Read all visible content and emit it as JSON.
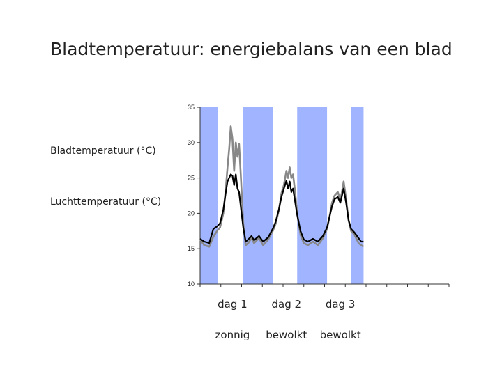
{
  "slide": {
    "title": "Bladtemperatuur: energiebalans van een blad",
    "labels": {
      "leaf": "Bladtemperatuur (°C)",
      "air": "Luchttemperatuur (°C)"
    }
  },
  "colors": {
    "night_band": "#a0b4ff",
    "leaf_series": "#888888",
    "air_series": "#000000",
    "axis": "#333333"
  },
  "chart_data": {
    "type": "line",
    "title": "Bladtemperatuur: energiebalans van een blad",
    "xlabel": "",
    "ylabel": "",
    "ylim": [
      10,
      35
    ],
    "yticks": [
      10,
      15,
      20,
      25,
      30,
      35
    ],
    "ytick_labels": [
      "10",
      "15",
      "20",
      "25",
      "30",
      "35"
    ],
    "xlim": [
      0,
      3
    ],
    "x_unit": "days",
    "night_bands": [
      [
        0,
        0.21
      ],
      [
        0.52,
        0.88
      ],
      [
        1.17,
        1.53
      ],
      [
        1.82,
        1.97
      ]
    ],
    "day_labels": [
      {
        "x": 0.39,
        "day": "dag 1",
        "weather": "zonnig"
      },
      {
        "x": 1.04,
        "day": "dag 2",
        "weather": "bewolkt"
      },
      {
        "x": 1.69,
        "day": "dag 3",
        "weather": "bewolkt"
      }
    ],
    "series": [
      {
        "name": "Bladtemperatuur (°C)",
        "x": [
          0,
          0.05,
          0.11,
          0.16,
          0.21,
          0.24,
          0.28,
          0.31,
          0.33,
          0.35,
          0.37,
          0.39,
          0.41,
          0.43,
          0.45,
          0.47,
          0.49,
          0.52,
          0.55,
          0.58,
          0.62,
          0.65,
          0.71,
          0.76,
          0.82,
          0.88,
          0.91,
          0.95,
          0.98,
          1.01,
          1.04,
          1.06,
          1.08,
          1.1,
          1.12,
          1.14,
          1.17,
          1.21,
          1.25,
          1.3,
          1.36,
          1.42,
          1.48,
          1.53,
          1.56,
          1.59,
          1.62,
          1.66,
          1.69,
          1.71,
          1.73,
          1.76,
          1.79,
          1.82,
          1.86,
          1.91,
          1.94,
          1.97
        ],
        "values": [
          16.3,
          15.5,
          15.3,
          16.7,
          17.6,
          18.0,
          20.0,
          23.5,
          26.5,
          29.0,
          32.3,
          30.5,
          26.0,
          30.0,
          28.0,
          29.8,
          25.5,
          18.5,
          15.5,
          15.8,
          16.5,
          15.8,
          16.5,
          15.5,
          16.3,
          17.6,
          18.5,
          20.5,
          22.8,
          24.0,
          26.0,
          25.0,
          26.5,
          25.0,
          25.5,
          23.5,
          20.0,
          17.0,
          15.8,
          15.5,
          16.0,
          15.5,
          16.5,
          17.8,
          19.5,
          21.5,
          22.5,
          23.0,
          22.0,
          23.0,
          24.5,
          22.0,
          19.0,
          17.5,
          17.0,
          15.8,
          15.5,
          15.3
        ]
      },
      {
        "name": "Luchttemperatuur (°C)",
        "x": [
          0,
          0.05,
          0.11,
          0.16,
          0.21,
          0.24,
          0.28,
          0.31,
          0.33,
          0.35,
          0.37,
          0.39,
          0.41,
          0.43,
          0.45,
          0.47,
          0.49,
          0.52,
          0.55,
          0.58,
          0.62,
          0.65,
          0.71,
          0.76,
          0.82,
          0.88,
          0.91,
          0.95,
          0.98,
          1.01,
          1.04,
          1.06,
          1.08,
          1.1,
          1.12,
          1.14,
          1.17,
          1.21,
          1.25,
          1.3,
          1.36,
          1.42,
          1.48,
          1.53,
          1.56,
          1.59,
          1.62,
          1.66,
          1.69,
          1.71,
          1.73,
          1.76,
          1.79,
          1.82,
          1.86,
          1.91,
          1.94,
          1.97
        ],
        "values": [
          16.4,
          16.0,
          15.8,
          17.8,
          18.2,
          18.6,
          20.5,
          23.0,
          24.5,
          25.0,
          25.5,
          25.3,
          24.0,
          25.5,
          23.5,
          23.0,
          21.0,
          18.0,
          16.0,
          16.3,
          16.8,
          16.2,
          16.8,
          16.0,
          16.6,
          17.9,
          18.8,
          20.6,
          22.3,
          23.5,
          24.6,
          23.5,
          24.5,
          23.0,
          23.5,
          22.0,
          19.8,
          17.5,
          16.3,
          16.0,
          16.4,
          16.0,
          16.8,
          18.0,
          19.5,
          21.0,
          22.0,
          22.3,
          21.5,
          22.5,
          23.5,
          21.5,
          19.0,
          17.8,
          17.3,
          16.5,
          16.0,
          16.0
        ]
      }
    ]
  }
}
